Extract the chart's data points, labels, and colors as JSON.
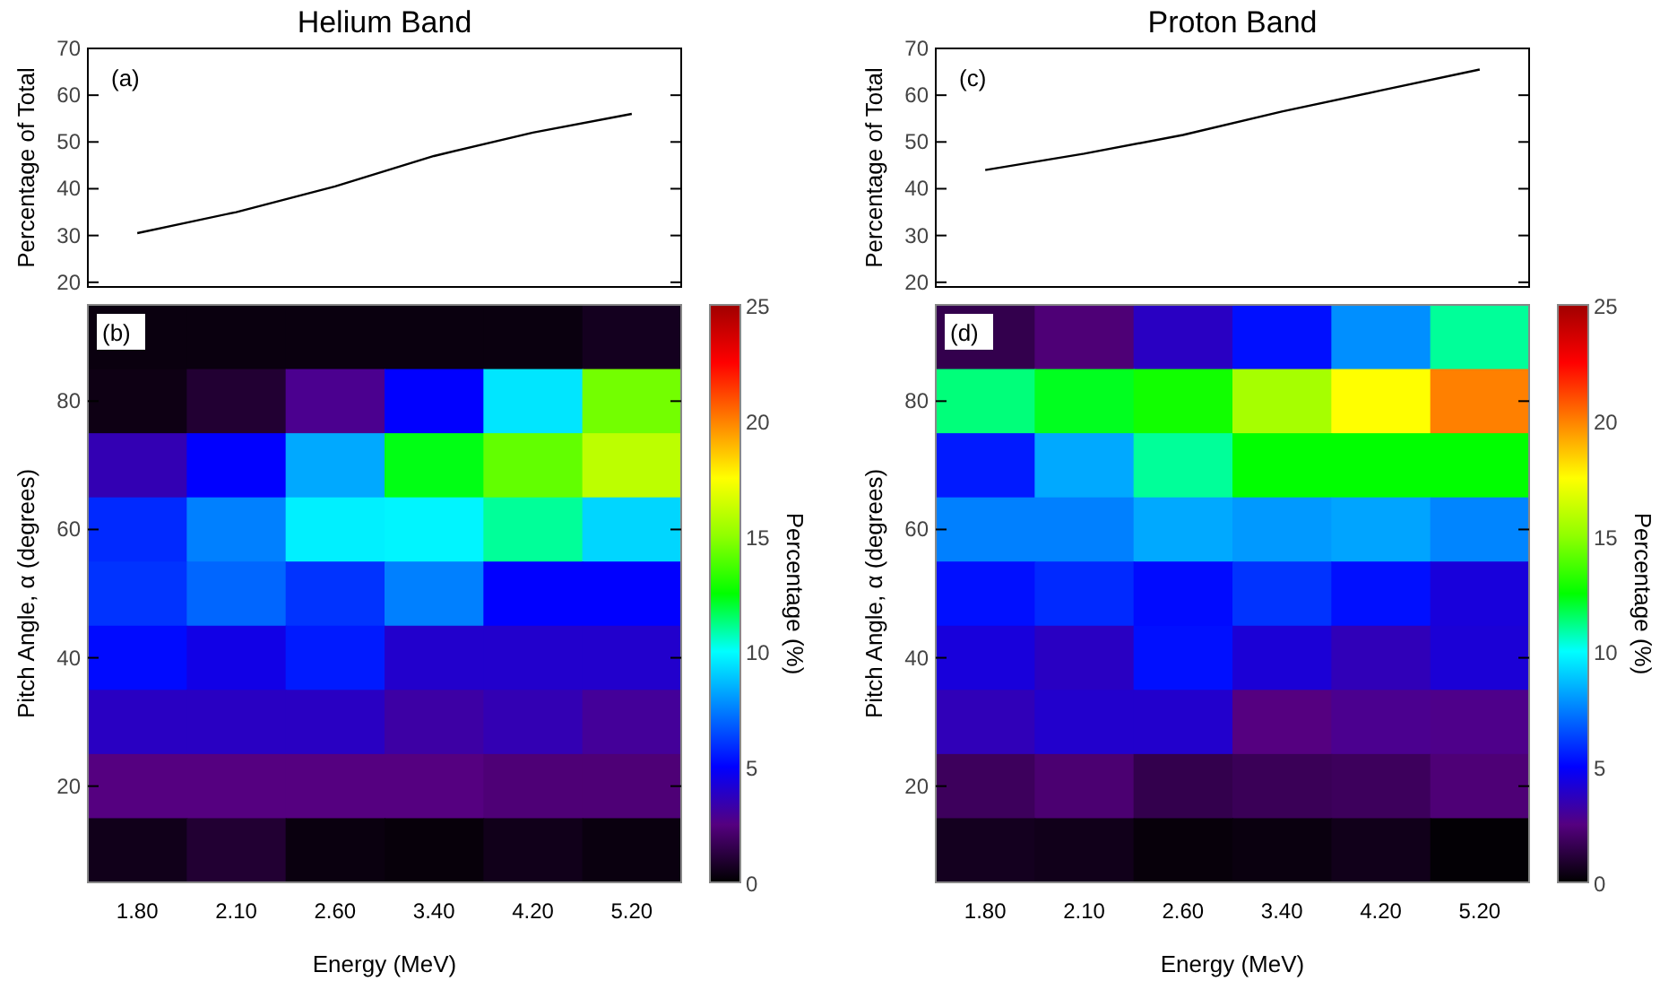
{
  "chart_data": [
    {
      "type": "line",
      "title": "Helium Band",
      "ylabel": "Percentage of Total",
      "annotations": [
        "(a)"
      ],
      "categories": [
        null,
        null,
        null,
        null,
        null,
        null
      ],
      "ylim": [
        19,
        70
      ],
      "yticks": [
        20,
        30,
        40,
        50,
        60,
        70
      ],
      "grid": false,
      "series": [
        {
          "color": "#000000",
          "values": [
            30.5,
            35,
            40.5,
            47,
            52,
            56
          ]
        }
      ]
    },
    {
      "type": "heatmap",
      "xlabel": "Energy (MeV)",
      "ylabel": "Pitch Angle, α (degrees)",
      "clabel": "Percentage (%)",
      "annotations": [
        "(b)"
      ],
      "categories": [
        "1.80",
        "2.10",
        "2.60",
        "3.40",
        "4.20",
        "5.20"
      ],
      "y_categories": [
        null,
        "80",
        null,
        "60",
        null,
        "40",
        null,
        "20",
        null
      ],
      "clim": [
        0,
        25
      ],
      "cticks": [
        0,
        5,
        10,
        15,
        20,
        25
      ],
      "cells": [
        [
          0.3,
          0.3,
          0.3,
          0.3,
          0.3,
          0.6
        ],
        [
          0.4,
          1,
          2.8,
          5,
          9.5,
          14.5
        ],
        [
          3.5,
          5,
          8.3,
          12.3,
          14.2,
          16
        ],
        [
          5.8,
          7.5,
          9.7,
          9.8,
          11,
          9.2
        ],
        [
          6,
          7,
          6,
          7.5,
          5,
          5
        ],
        [
          5.2,
          4.5,
          5.5,
          4,
          4,
          4
        ],
        [
          3.8,
          3.8,
          3.8,
          3.2,
          3.5,
          3
        ],
        [
          2.5,
          2.5,
          2.5,
          2.5,
          2.3,
          2.3
        ],
        [
          0.5,
          1,
          0.3,
          0.2,
          0.5,
          0.3
        ]
      ]
    },
    {
      "type": "line",
      "title": "Proton Band",
      "ylabel": "Percentage of Total",
      "annotations": [
        "(c)"
      ],
      "categories": [
        null,
        null,
        null,
        null,
        null,
        null
      ],
      "ylim": [
        19,
        70
      ],
      "yticks": [
        20,
        30,
        40,
        50,
        60,
        70
      ],
      "grid": false,
      "series": [
        {
          "color": "#000000",
          "values": [
            44,
            47.5,
            51.5,
            56.5,
            61,
            65.5
          ]
        }
      ]
    },
    {
      "type": "heatmap",
      "xlabel": "Energy (MeV)",
      "ylabel": "Pitch Angle, α (degrees)",
      "clabel": "Percentage (%)",
      "annotations": [
        "(d)"
      ],
      "categories": [
        "1.80",
        "2.10",
        "2.60",
        "3.40",
        "4.20",
        "5.20"
      ],
      "y_categories": [
        null,
        "80",
        null,
        "60",
        null,
        "40",
        null,
        "20",
        null
      ],
      "clim": [
        0,
        25
      ],
      "cticks": [
        0,
        5,
        10,
        15,
        20,
        25
      ],
      "cells": [
        [
          1.5,
          2.3,
          3.8,
          5.3,
          7.8,
          11
        ],
        [
          11.3,
          12.2,
          12.8,
          15.5,
          17.5,
          20
        ],
        [
          5.5,
          8.3,
          11,
          12.5,
          12.5,
          12.5
        ],
        [
          7.5,
          7.5,
          8.3,
          8,
          8.2,
          7.6
        ],
        [
          5.3,
          5.8,
          5.2,
          6,
          5.3,
          4.3
        ],
        [
          4.3,
          3.8,
          5.3,
          4.2,
          3.6,
          4.2
        ],
        [
          3.6,
          4,
          4,
          2.5,
          2.8,
          2.7
        ],
        [
          1.8,
          2.2,
          1.5,
          1.7,
          1.8,
          2.3
        ],
        [
          0.6,
          0.5,
          0.2,
          0.3,
          0.5,
          0.1
        ]
      ]
    }
  ]
}
